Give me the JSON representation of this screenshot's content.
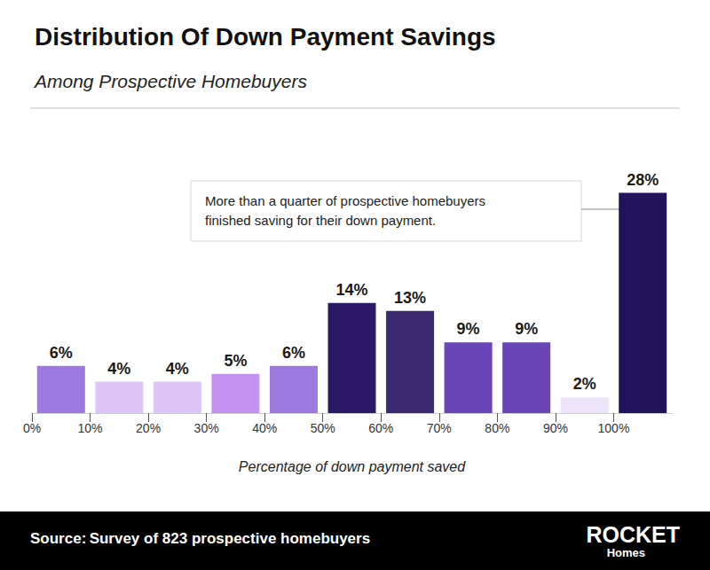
{
  "chart_data": {
    "type": "bar",
    "title": "Distribution Of Down Payment Savings",
    "subtitle": "Among Prospective Homebuyers",
    "x_label": "Percentage of down payment saved",
    "annotation": "More than a quarter of prospective homebuyers\nfinished saving for their down payment.",
    "source_label": "Source:",
    "source": "Survey of 823 prospective homebuyers",
    "logo": "ROCKET",
    "logo_sub": "Homes",
    "x": [
      5,
      15,
      25,
      35,
      45,
      55,
      65,
      75,
      85,
      95,
      105
    ],
    "values": [
      6,
      4,
      4,
      5,
      6,
      14,
      13,
      9,
      9,
      2,
      28
    ],
    "value_labels": [
      "6%",
      "4%",
      "4%",
      "5%",
      "6%",
      "14%",
      "13%",
      "9%",
      "9%",
      "2%",
      "28%"
    ],
    "colors": [
      "#9d78de",
      "#dcc6f8",
      "#dcc6f8",
      "#c493f2",
      "#9d78de",
      "#2b1866",
      "#3b2a72",
      "#6a45b8",
      "#6a45b8",
      "#ece3fb",
      "#22135c"
    ],
    "xlim": [
      0,
      110
    ],
    "xticks": [
      {
        "value": 0,
        "label": "0%"
      },
      {
        "value": 10,
        "label": "10%"
      },
      {
        "value": 20,
        "label": "20%"
      },
      {
        "value": 30,
        "label": "30%"
      },
      {
        "value": 40,
        "label": "40%"
      },
      {
        "value": 50,
        "label": "50%"
      },
      {
        "value": 60,
        "label": "60%"
      },
      {
        "value": 70,
        "label": "70%"
      },
      {
        "value": 80,
        "label": "80%"
      },
      {
        "value": 90,
        "label": "90%"
      },
      {
        "value": 100,
        "label": "100%"
      }
    ],
    "ylim": [
      0,
      32
    ],
    "grid": false,
    "data_labels": true,
    "tick_labels": "x"
  }
}
